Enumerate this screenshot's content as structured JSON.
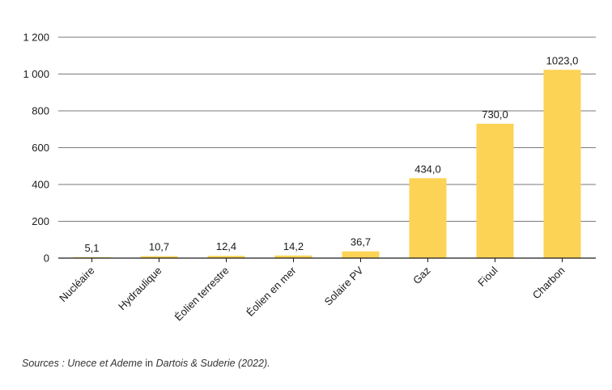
{
  "chart_data": {
    "type": "bar",
    "categories": [
      "Nucléaire",
      "Hydraulique",
      "Éolien terrestre",
      "Éolien en mer",
      "Solaire PV",
      "Gaz",
      "Fioul",
      "Charbon"
    ],
    "values": [
      5.1,
      10.7,
      12.4,
      14.2,
      36.7,
      434.0,
      730.0,
      1023.0
    ],
    "value_labels": [
      "5,1",
      "10,7",
      "12,4",
      "14,2",
      "36,7",
      "434,0",
      "730,0",
      "1023,0"
    ],
    "yticks": [
      0,
      200,
      400,
      600,
      800,
      1000,
      1200
    ],
    "ytick_labels": [
      "0",
      "200",
      "400",
      "600",
      "800",
      "1 000",
      "1 200"
    ],
    "ylim": [
      0,
      1200
    ],
    "grid": true,
    "bar_color": "#FCD354",
    "grid_color": "#7a7a7a"
  },
  "source": {
    "part1": "Sources : Unece et Ademe",
    "part2": " in ",
    "part3": "Dartois & Suderie (2022)",
    "part4": "."
  }
}
